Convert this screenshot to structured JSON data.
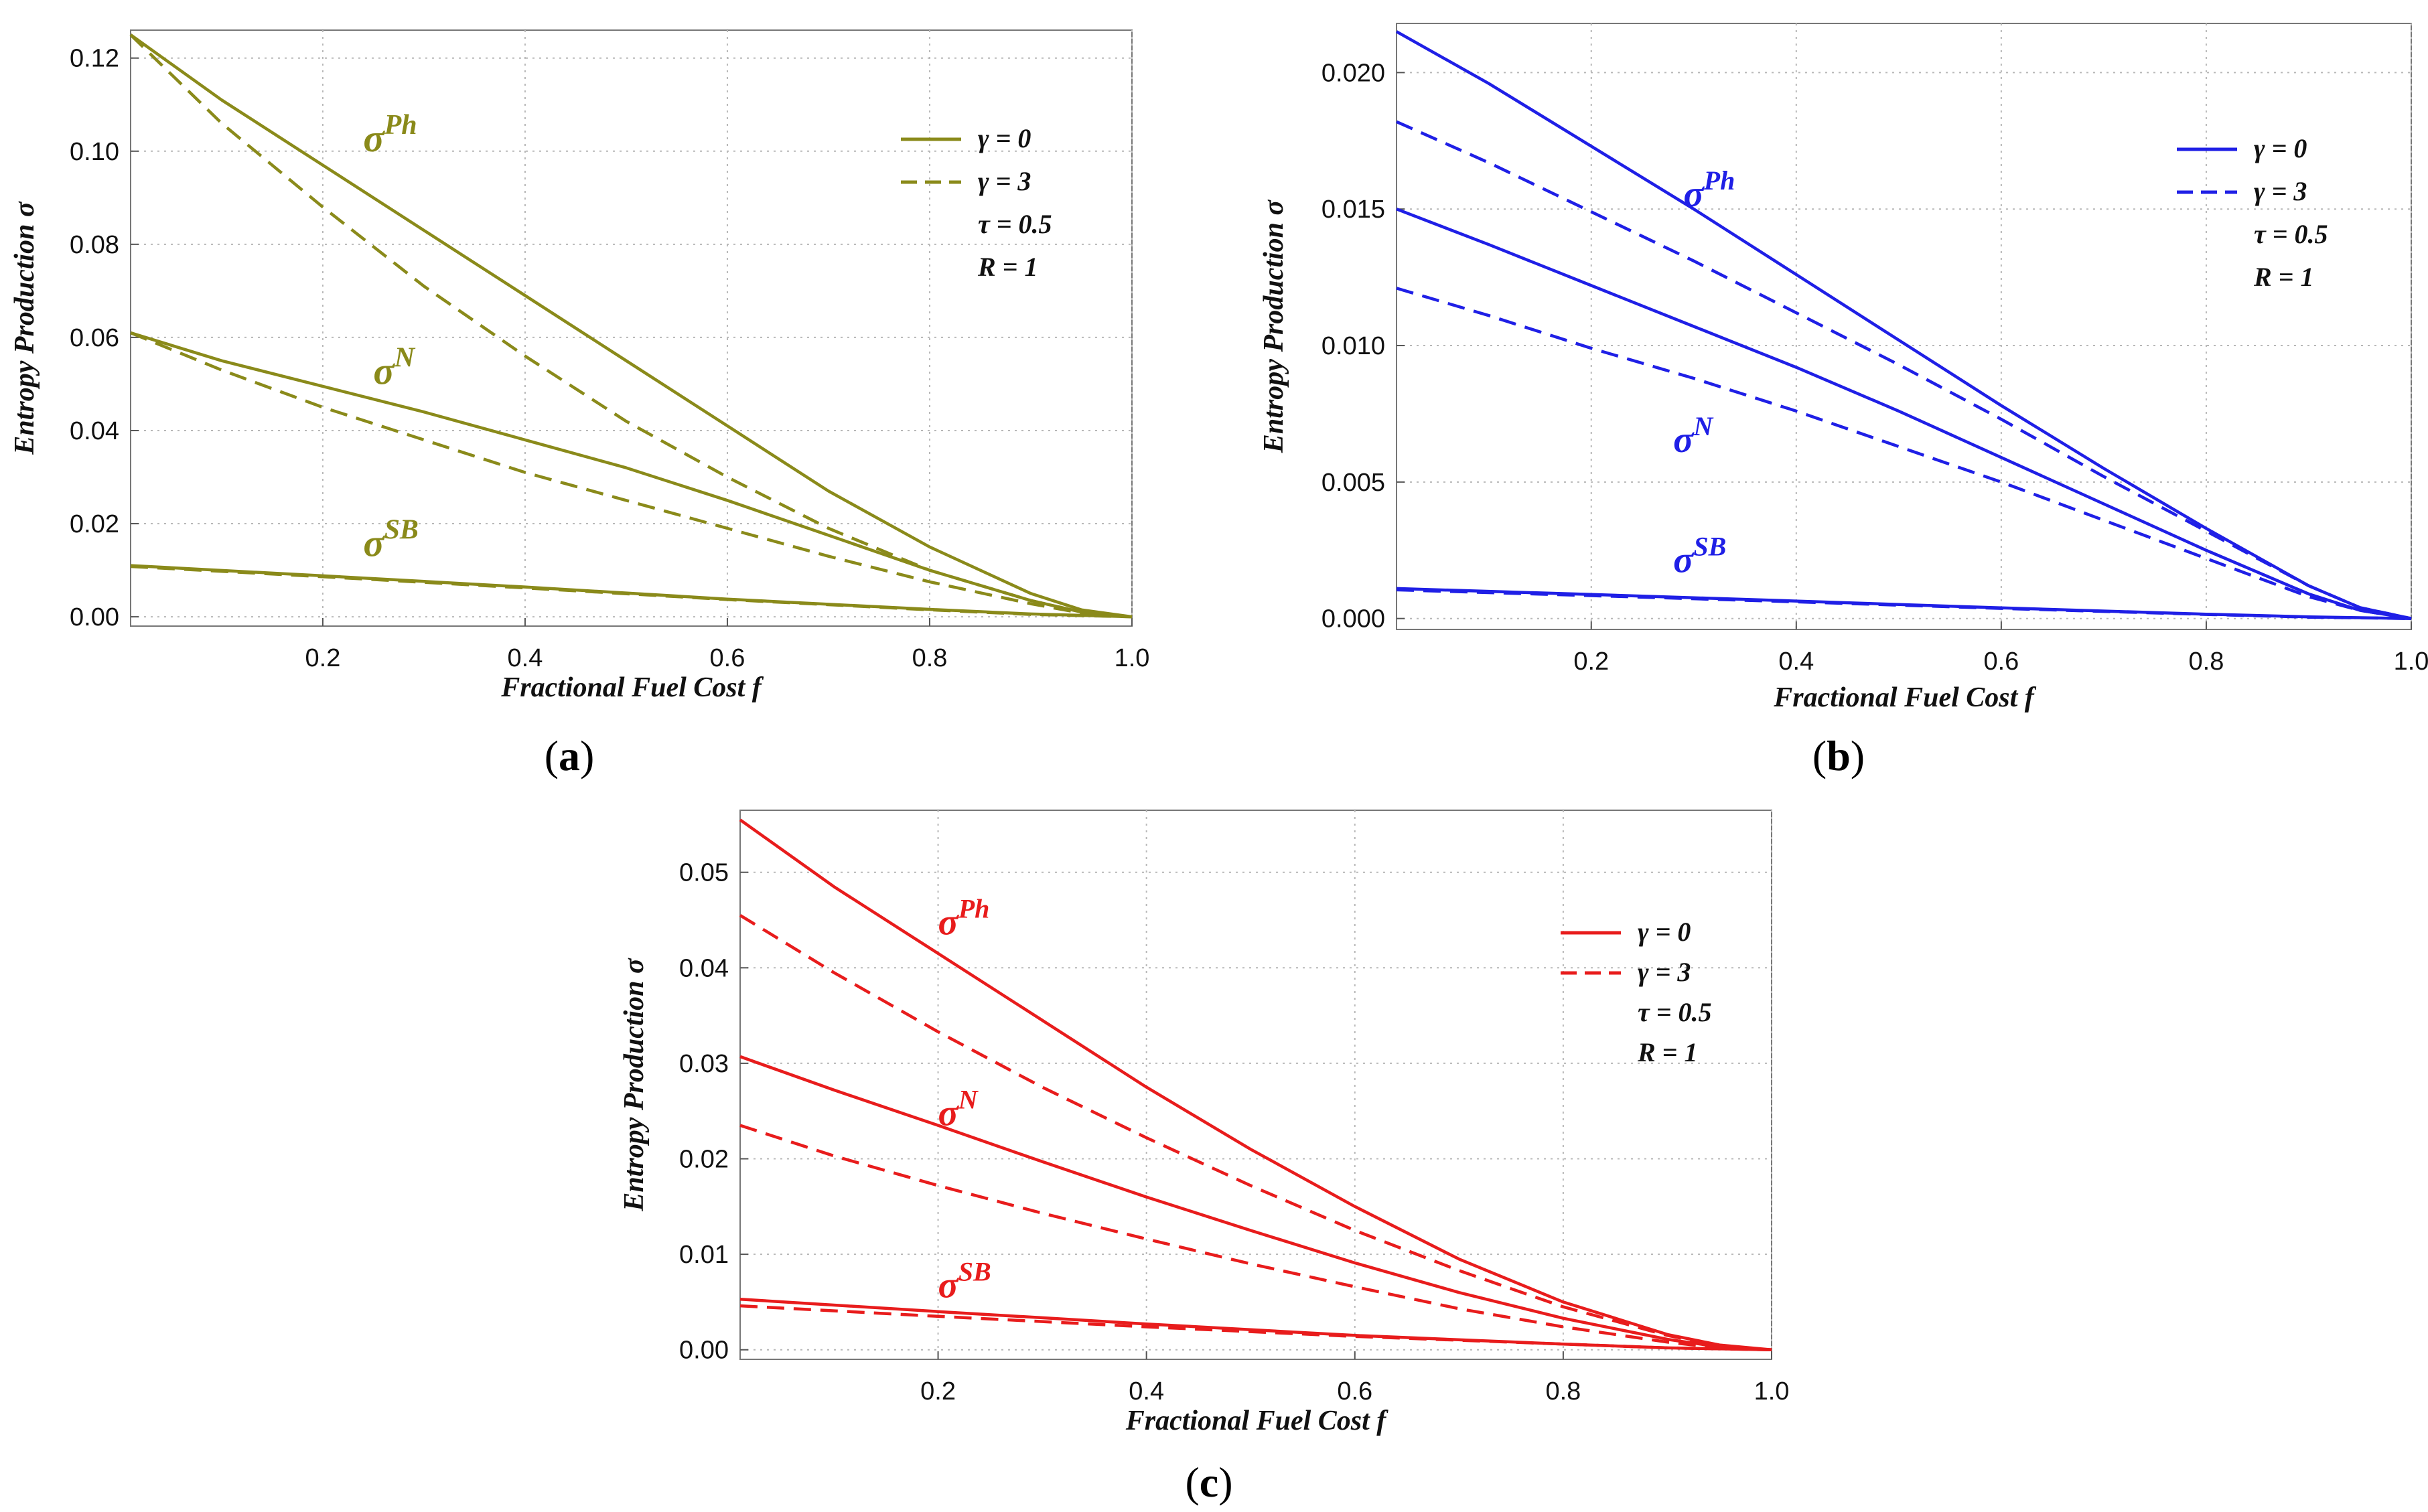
{
  "chart_data": [
    {
      "type": "line",
      "panel_label": "a",
      "color": "#8a8a1a",
      "xlabel": "Fractional Fuel Cost f",
      "ylabel": "Entropy Production σ",
      "xlim": [
        0.01,
        1.0
      ],
      "ylim": [
        -0.002,
        0.126
      ],
      "xticks": [
        "0.2",
        "0.4",
        "0.6",
        "0.8",
        "1.0"
      ],
      "xtick_values": [
        0.2,
        0.4,
        0.6,
        0.8,
        1.0
      ],
      "yticks": [
        "0.00",
        "0.02",
        "0.04",
        "0.06",
        "0.08",
        "0.10",
        "0.12"
      ],
      "ytick_values": [
        0.0,
        0.02,
        0.04,
        0.06,
        0.08,
        0.1,
        0.12
      ],
      "grid": true,
      "legend": {
        "placement": "top-right",
        "entries": [
          "γ = 0",
          "γ = 3",
          "τ = 0.5",
          "R = 1"
        ]
      },
      "annotations": [
        {
          "base": "σ",
          "sup": "Ph",
          "x": 0.24,
          "y": 0.1
        },
        {
          "base": "σ",
          "sup": "N",
          "x": 0.25,
          "y": 0.05
        },
        {
          "base": "σ",
          "sup": "SB",
          "x": 0.24,
          "y": 0.013
        }
      ],
      "series": [
        {
          "name": "σ^Ph, γ = 0",
          "style": "solid",
          "x": [
            0.01,
            0.1,
            0.2,
            0.3,
            0.4,
            0.5,
            0.6,
            0.7,
            0.8,
            0.9,
            0.95,
            1.0
          ],
          "y": [
            0.125,
            0.111,
            0.097,
            0.083,
            0.069,
            0.055,
            0.041,
            0.027,
            0.015,
            0.005,
            0.0015,
            0.0
          ]
        },
        {
          "name": "σ^Ph, γ = 3",
          "style": "dashed",
          "x": [
            0.01,
            0.1,
            0.2,
            0.3,
            0.4,
            0.5,
            0.6,
            0.7,
            0.8,
            0.9,
            0.95,
            1.0
          ],
          "y": [
            0.125,
            0.106,
            0.088,
            0.071,
            0.056,
            0.042,
            0.03,
            0.019,
            0.01,
            0.0035,
            0.001,
            0.0
          ]
        },
        {
          "name": "σ^N, γ = 0",
          "style": "solid",
          "x": [
            0.01,
            0.1,
            0.2,
            0.3,
            0.4,
            0.5,
            0.6,
            0.7,
            0.8,
            0.9,
            0.95,
            1.0
          ],
          "y": [
            0.061,
            0.055,
            0.0495,
            0.044,
            0.038,
            0.032,
            0.025,
            0.0175,
            0.01,
            0.0035,
            0.001,
            0.0
          ]
        },
        {
          "name": "σ^N, γ = 3",
          "style": "dashed",
          "x": [
            0.01,
            0.1,
            0.2,
            0.3,
            0.4,
            0.5,
            0.6,
            0.7,
            0.8,
            0.9,
            0.95,
            1.0
          ],
          "y": [
            0.061,
            0.053,
            0.045,
            0.038,
            0.031,
            0.025,
            0.019,
            0.013,
            0.0075,
            0.0028,
            0.0008,
            0.0
          ]
        },
        {
          "name": "σ^SB, γ = 0",
          "style": "solid",
          "x": [
            0.01,
            0.2,
            0.4,
            0.6,
            0.8,
            0.9,
            1.0
          ],
          "y": [
            0.011,
            0.0088,
            0.0064,
            0.0038,
            0.0016,
            0.0006,
            0.0
          ]
        },
        {
          "name": "σ^SB, γ = 3",
          "style": "dashed",
          "x": [
            0.01,
            0.2,
            0.4,
            0.6,
            0.8,
            0.9,
            1.0
          ],
          "y": [
            0.0108,
            0.0086,
            0.0062,
            0.0037,
            0.0015,
            0.0005,
            0.0
          ]
        }
      ]
    },
    {
      "type": "line",
      "panel_label": "b",
      "color": "#1f1fe6",
      "xlabel": "Fractional Fuel Cost f",
      "ylabel": "Entropy Production σ",
      "xlim": [
        0.01,
        1.0
      ],
      "ylim": [
        -0.0004,
        0.0218
      ],
      "xticks": [
        "0.2",
        "0.4",
        "0.6",
        "0.8",
        "1.0"
      ],
      "xtick_values": [
        0.2,
        0.4,
        0.6,
        0.8,
        1.0
      ],
      "yticks": [
        "0.000",
        "0.005",
        "0.010",
        "0.015",
        "0.020"
      ],
      "ytick_values": [
        0.0,
        0.005,
        0.01,
        0.015,
        0.02
      ],
      "grid": true,
      "legend": {
        "placement": "top-right",
        "entries": [
          "γ = 0",
          "γ = 3",
          "τ = 0.5",
          "R = 1"
        ]
      },
      "annotations": [
        {
          "base": "σ",
          "sup": "Ph",
          "x": 0.29,
          "y": 0.0151
        },
        {
          "base": "σ",
          "sup": "N",
          "x": 0.28,
          "y": 0.0061
        },
        {
          "base": "σ",
          "sup": "SB",
          "x": 0.28,
          "y": 0.0017
        }
      ],
      "series": [
        {
          "name": "σ^Ph, γ = 0",
          "style": "solid",
          "x": [
            0.01,
            0.1,
            0.2,
            0.3,
            0.4,
            0.5,
            0.6,
            0.7,
            0.8,
            0.9,
            0.95,
            1.0
          ],
          "y": [
            0.0215,
            0.0196,
            0.0173,
            0.015,
            0.0126,
            0.0102,
            0.0078,
            0.0055,
            0.0033,
            0.0012,
            0.0004,
            0.0
          ]
        },
        {
          "name": "σ^Ph, γ = 3",
          "style": "dashed",
          "x": [
            0.01,
            0.1,
            0.2,
            0.3,
            0.4,
            0.5,
            0.6,
            0.7,
            0.8,
            0.9,
            0.95,
            1.0
          ],
          "y": [
            0.0182,
            0.0167,
            0.0149,
            0.0131,
            0.0112,
            0.0093,
            0.0073,
            0.0052,
            0.0032,
            0.0012,
            0.0004,
            0.0
          ]
        },
        {
          "name": "σ^N, γ = 0",
          "style": "solid",
          "x": [
            0.01,
            0.1,
            0.2,
            0.3,
            0.4,
            0.5,
            0.6,
            0.7,
            0.8,
            0.9,
            0.95,
            1.0
          ],
          "y": [
            0.015,
            0.0137,
            0.0122,
            0.0107,
            0.0092,
            0.0076,
            0.0059,
            0.0042,
            0.0025,
            0.0009,
            0.0003,
            0.0
          ]
        },
        {
          "name": "σ^N, γ = 3",
          "style": "dashed",
          "x": [
            0.01,
            0.1,
            0.2,
            0.3,
            0.4,
            0.5,
            0.6,
            0.7,
            0.8,
            0.9,
            0.95,
            1.0
          ],
          "y": [
            0.0121,
            0.0111,
            0.0099,
            0.0088,
            0.0076,
            0.0063,
            0.005,
            0.0036,
            0.0022,
            0.0008,
            0.0003,
            0.0
          ]
        },
        {
          "name": "σ^SB, γ = 0",
          "style": "solid",
          "x": [
            0.01,
            0.2,
            0.4,
            0.6,
            0.8,
            0.9,
            1.0
          ],
          "y": [
            0.0011,
            0.00088,
            0.00064,
            0.00039,
            0.00016,
            6e-05,
            0.0
          ]
        },
        {
          "name": "σ^SB, γ = 3",
          "style": "dashed",
          "x": [
            0.01,
            0.2,
            0.4,
            0.6,
            0.8,
            0.9,
            1.0
          ],
          "y": [
            0.00105,
            0.00084,
            0.00061,
            0.00037,
            0.00015,
            5e-05,
            0.0
          ]
        }
      ]
    },
    {
      "type": "line",
      "panel_label": "c",
      "color": "#e81c1c",
      "xlabel": "Fractional Fuel Cost f",
      "ylabel": "Entropy Production σ",
      "xlim": [
        0.01,
        1.0
      ],
      "ylim": [
        -0.001,
        0.0565
      ],
      "xticks": [
        "0.2",
        "0.4",
        "0.6",
        "0.8",
        "1.0"
      ],
      "xtick_values": [
        0.2,
        0.4,
        0.6,
        0.8,
        1.0
      ],
      "yticks": [
        "0.00",
        "0.01",
        "0.02",
        "0.03",
        "0.04",
        "0.05"
      ],
      "ytick_values": [
        0.0,
        0.01,
        0.02,
        0.03,
        0.04,
        0.05
      ],
      "grid": true,
      "legend": {
        "placement": "top-right",
        "entries": [
          "γ = 0",
          "γ = 3",
          "τ = 0.5",
          "R = 1"
        ]
      },
      "annotations": [
        {
          "base": "σ",
          "sup": "Ph",
          "x": 0.2,
          "y": 0.0435
        },
        {
          "base": "σ",
          "sup": "N",
          "x": 0.2,
          "y": 0.0235
        },
        {
          "base": "σ",
          "sup": "SB",
          "x": 0.2,
          "y": 0.0055
        }
      ],
      "series": [
        {
          "name": "σ^Ph, γ = 0",
          "style": "solid",
          "x": [
            0.01,
            0.1,
            0.2,
            0.3,
            0.4,
            0.5,
            0.6,
            0.7,
            0.8,
            0.9,
            0.95,
            1.0
          ],
          "y": [
            0.0555,
            0.0485,
            0.0415,
            0.0345,
            0.0275,
            0.021,
            0.015,
            0.0095,
            0.005,
            0.0016,
            0.0005,
            0.0
          ]
        },
        {
          "name": "σ^Ph, γ = 3",
          "style": "dashed",
          "x": [
            0.01,
            0.1,
            0.2,
            0.3,
            0.4,
            0.5,
            0.6,
            0.7,
            0.8,
            0.9,
            0.95,
            1.0
          ],
          "y": [
            0.0455,
            0.0395,
            0.0333,
            0.0275,
            0.0222,
            0.0172,
            0.0125,
            0.0083,
            0.0045,
            0.0015,
            0.0004,
            0.0
          ]
        },
        {
          "name": "σ^N, γ = 0",
          "style": "solid",
          "x": [
            0.01,
            0.1,
            0.2,
            0.3,
            0.4,
            0.5,
            0.6,
            0.7,
            0.8,
            0.9,
            0.95,
            1.0
          ],
          "y": [
            0.0307,
            0.0272,
            0.0235,
            0.0197,
            0.016,
            0.0125,
            0.0091,
            0.006,
            0.0033,
            0.0011,
            0.0003,
            0.0
          ]
        },
        {
          "name": "σ^N, γ = 3",
          "style": "dashed",
          "x": [
            0.01,
            0.1,
            0.2,
            0.3,
            0.4,
            0.5,
            0.6,
            0.7,
            0.8,
            0.9,
            0.95,
            1.0
          ],
          "y": [
            0.0235,
            0.0203,
            0.0172,
            0.0143,
            0.0116,
            0.009,
            0.0066,
            0.0043,
            0.0024,
            0.0008,
            0.0002,
            0.0
          ]
        },
        {
          "name": "σ^SB, γ = 0",
          "style": "solid",
          "x": [
            0.01,
            0.2,
            0.4,
            0.6,
            0.8,
            0.9,
            1.0
          ],
          "y": [
            0.0053,
            0.004,
            0.0027,
            0.0015,
            0.0006,
            0.0002,
            0.0
          ]
        },
        {
          "name": "σ^SB, γ = 3",
          "style": "dashed",
          "x": [
            0.01,
            0.2,
            0.4,
            0.6,
            0.8,
            0.9,
            1.0
          ],
          "y": [
            0.0046,
            0.0035,
            0.0024,
            0.0014,
            0.0006,
            0.0002,
            0.0
          ]
        }
      ]
    }
  ]
}
